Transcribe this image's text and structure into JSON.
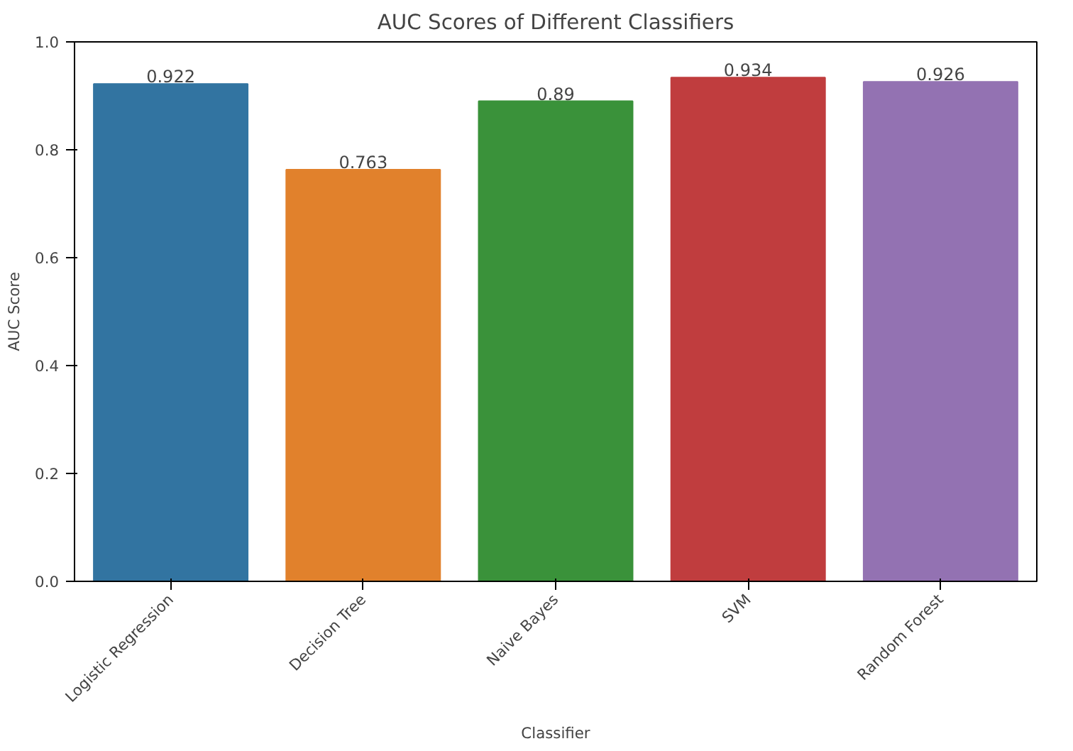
{
  "chart_data": {
    "type": "bar",
    "title": "AUC Scores of Different Classifiers",
    "xlabel": "Classifier",
    "ylabel": "AUC Score",
    "categories": [
      "Logistic Regression",
      "Decision Tree",
      "Naive Bayes",
      "SVM",
      "Random Forest"
    ],
    "values": [
      0.922,
      0.763,
      0.89,
      0.934,
      0.926
    ],
    "colors": [
      "#3274a1",
      "#e1812c",
      "#3a923a",
      "#c03d3e",
      "#9372b2"
    ],
    "ylim": [
      0,
      1.0
    ],
    "yticks": [
      {
        "value": 0,
        "label": "0.0"
      },
      {
        "value": 0.2,
        "label": "0.2"
      },
      {
        "value": 0.4,
        "label": "0.4"
      },
      {
        "value": 0.6,
        "label": "0.6"
      },
      {
        "value": 0.8,
        "label": "0.8"
      },
      {
        "value": 1,
        "label": "1.0"
      }
    ],
    "data_labels": true,
    "grid": false
  }
}
